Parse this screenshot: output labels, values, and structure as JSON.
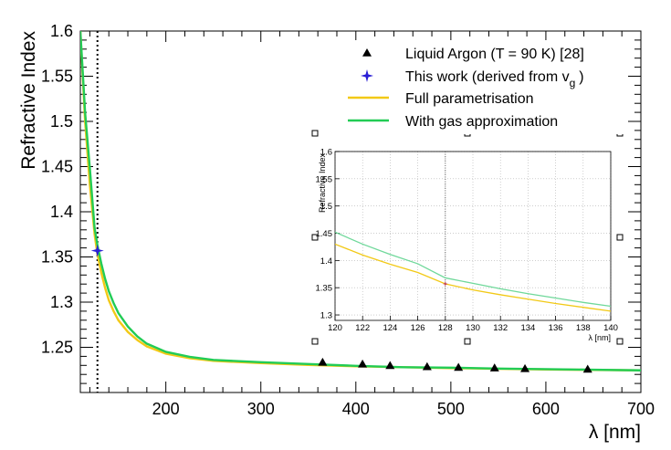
{
  "chart_data": [
    {
      "id": "main",
      "type": "line",
      "xlabel": "λ [nm]",
      "ylabel": "Refractive Index",
      "xlim": [
        110,
        700
      ],
      "ylim": [
        1.2,
        1.6
      ],
      "xticks": [
        200,
        300,
        400,
        500,
        600,
        700
      ],
      "yticks": [
        1.25,
        1.3,
        1.35,
        1.4,
        1.45,
        1.5,
        1.55,
        1.6
      ],
      "vline_x": 128,
      "grid": false,
      "legend_position": "top-right",
      "legend": [
        {
          "label": "Liquid Argon (T = 90 K) [28]",
          "marker": "triangle",
          "color": "#000000"
        },
        {
          "label": "This work (derived from v",
          "sub": "g",
          "tail": ")",
          "marker": "star",
          "color": "#2a1fd6"
        },
        {
          "label": "Full parametrisation",
          "marker": "line",
          "color": "#f2c916"
        },
        {
          "label": "With gas approximation",
          "marker": "line",
          "color": "#22cc55"
        }
      ],
      "series": [
        {
          "name": "Liquid Argon (T = 90 K) [28]",
          "kind": "points",
          "color": "#000000",
          "x": [
            365,
            407,
            436,
            475,
            508,
            546,
            578,
            644
          ],
          "y": [
            1.2335,
            1.2315,
            1.2298,
            1.2285,
            1.2278,
            1.2271,
            1.2264,
            1.2257
          ]
        },
        {
          "name": "This work (derived from vg)",
          "kind": "points",
          "color": "#2a1fd6",
          "x": [
            128
          ],
          "y": [
            1.357
          ]
        },
        {
          "name": "Full parametrisation",
          "kind": "line",
          "color": "#f2c916",
          "x": [
            110,
            115,
            120,
            125,
            128,
            132,
            136,
            140,
            145,
            150,
            160,
            170,
            180,
            200,
            225,
            250,
            300,
            350,
            400,
            450,
            500,
            550,
            600,
            650,
            700
          ],
          "y": [
            1.6,
            1.5,
            1.43,
            1.375,
            1.353,
            1.333,
            1.316,
            1.302,
            1.29,
            1.28,
            1.267,
            1.258,
            1.251,
            1.243,
            1.238,
            1.235,
            1.2325,
            1.2305,
            1.229,
            1.228,
            1.227,
            1.2262,
            1.2255,
            1.225,
            1.2245
          ]
        },
        {
          "name": "With gas approximation",
          "kind": "line",
          "color": "#22cc55",
          "x": [
            110,
            115,
            120,
            125,
            128,
            132,
            136,
            140,
            145,
            150,
            160,
            170,
            180,
            200,
            225,
            250,
            300,
            350,
            400,
            450,
            500,
            550,
            600,
            650,
            700
          ],
          "y": [
            1.6,
            1.51,
            1.448,
            1.382,
            1.363,
            1.343,
            1.326,
            1.312,
            1.299,
            1.288,
            1.273,
            1.262,
            1.254,
            1.245,
            1.2395,
            1.236,
            1.2335,
            1.2315,
            1.2295,
            1.228,
            1.2275,
            1.2265,
            1.2258,
            1.2252,
            1.2245
          ]
        }
      ]
    },
    {
      "id": "inset",
      "type": "line",
      "xlabel": "λ [nm]",
      "ylabel": "Refractive Index",
      "xlim": [
        120,
        140
      ],
      "ylim": [
        1.29,
        1.6
      ],
      "xticks": [
        120,
        122,
        124,
        126,
        128,
        130,
        132,
        134,
        136,
        138,
        140
      ],
      "yticks": [
        1.3,
        1.35,
        1.4,
        1.45,
        1.5,
        1.55,
        1.6
      ],
      "vline_x": 128,
      "grid": true,
      "series": [
        {
          "name": "Full parametrisation",
          "kind": "line",
          "color": "#f2c916",
          "x": [
            120,
            122,
            124,
            126,
            128,
            130,
            132,
            134,
            136,
            138,
            140
          ],
          "y": [
            1.43,
            1.41,
            1.393,
            1.378,
            1.357,
            1.346,
            1.337,
            1.329,
            1.321,
            1.314,
            1.307
          ]
        },
        {
          "name": "With gas approximation",
          "kind": "line",
          "color": "#22cc55",
          "x": [
            120,
            122,
            124,
            126,
            128,
            130,
            132,
            134,
            136,
            138,
            140
          ],
          "y": [
            1.452,
            1.43,
            1.411,
            1.394,
            1.368,
            1.358,
            1.348,
            1.339,
            1.331,
            1.323,
            1.316
          ]
        },
        {
          "name": "This work (derived from vg)",
          "kind": "points",
          "color": "#2a1fd6",
          "x": [
            128
          ],
          "y": [
            1.357
          ]
        }
      ]
    }
  ]
}
